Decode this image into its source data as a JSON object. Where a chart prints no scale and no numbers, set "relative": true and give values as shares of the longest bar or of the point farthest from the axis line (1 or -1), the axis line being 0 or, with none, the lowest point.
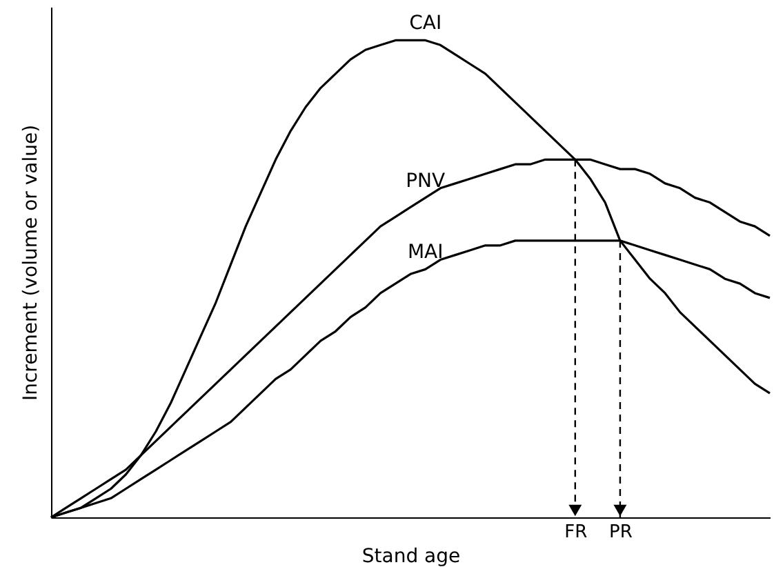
{
  "chart_data": {
    "type": "line",
    "relative": true,
    "xlabel": "Stand age",
    "ylabel": "Increment (volume or value)",
    "grid": false,
    "line_style": "solid",
    "categories": [
      null,
      null,
      null,
      null,
      null,
      null,
      null,
      null,
      null,
      null,
      null,
      null,
      null,
      null,
      null,
      null,
      null,
      null,
      null,
      null,
      null,
      null,
      null,
      null,
      null,
      null,
      null,
      null,
      null,
      null,
      null,
      null,
      null,
      null,
      null,
      "FR",
      null,
      null,
      "PR",
      null,
      null,
      null,
      null,
      null,
      null,
      null,
      null,
      null,
      null
    ],
    "series": [
      {
        "name": "CAI",
        "color": "#000000",
        "values": [
          0,
          0.01,
          0.02,
          0.04,
          0.06,
          0.09,
          0.13,
          0.18,
          0.24,
          0.31,
          0.38,
          0.45,
          0.53,
          0.61,
          0.68,
          0.75,
          0.81,
          0.86,
          0.9,
          0.93,
          0.96,
          0.98,
          0.99,
          1,
          1,
          1,
          0.99,
          0.97,
          0.95,
          0.93,
          0.9,
          0.87,
          0.84,
          0.81,
          0.78,
          0.75,
          0.71,
          0.66,
          0.58,
          0.54,
          0.5,
          0.47,
          0.43,
          0.4,
          0.37,
          0.34,
          0.31,
          0.28,
          0.26
        ]
      },
      {
        "name": "PNV",
        "color": "#000000",
        "values": [
          0,
          0.02,
          0.04,
          0.06,
          0.08,
          0.1,
          0.13,
          0.16,
          0.19,
          0.22,
          0.25,
          0.28,
          0.31,
          0.34,
          0.37,
          0.4,
          0.43,
          0.46,
          0.49,
          0.52,
          0.55,
          0.58,
          0.61,
          0.63,
          0.65,
          0.67,
          0.69,
          0.7,
          0.71,
          0.72,
          0.73,
          0.74,
          0.74,
          0.75,
          0.75,
          0.75,
          0.75,
          0.74,
          0.73,
          0.73,
          0.72,
          0.7,
          0.69,
          0.67,
          0.66,
          0.64,
          0.62,
          0.61,
          0.59
        ]
      },
      {
        "name": "MAI",
        "color": "#000000",
        "values": [
          0,
          0.01,
          0.02,
          0.03,
          0.04,
          0.06,
          0.08,
          0.1,
          0.12,
          0.14,
          0.16,
          0.18,
          0.2,
          0.23,
          0.26,
          0.29,
          0.31,
          0.34,
          0.37,
          0.39,
          0.42,
          0.44,
          0.47,
          0.49,
          0.51,
          0.52,
          0.54,
          0.55,
          0.56,
          0.57,
          0.57,
          0.58,
          0.58,
          0.58,
          0.58,
          0.58,
          0.58,
          0.58,
          0.58,
          0.57,
          0.56,
          0.55,
          0.54,
          0.53,
          0.52,
          0.5,
          0.49,
          0.47,
          0.46
        ]
      }
    ],
    "ref_lines": [
      {
        "axis": "x",
        "value": "FR",
        "line_style": "dashed",
        "color": "#000000"
      },
      {
        "axis": "x",
        "value": "PR",
        "line_style": "dashed",
        "color": "#000000"
      }
    ]
  }
}
